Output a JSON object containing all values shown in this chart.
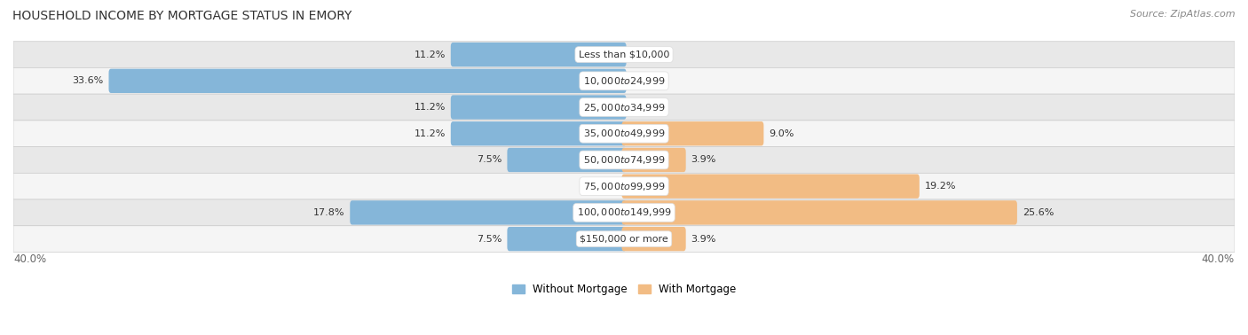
{
  "title": "HOUSEHOLD INCOME BY MORTGAGE STATUS IN EMORY",
  "source": "Source: ZipAtlas.com",
  "categories": [
    "Less than $10,000",
    "$10,000 to $24,999",
    "$25,000 to $34,999",
    "$35,000 to $49,999",
    "$50,000 to $74,999",
    "$75,000 to $99,999",
    "$100,000 to $149,999",
    "$150,000 or more"
  ],
  "without_mortgage": [
    11.2,
    33.6,
    11.2,
    11.2,
    7.5,
    0.0,
    17.8,
    7.5
  ],
  "with_mortgage": [
    0.0,
    0.0,
    0.0,
    9.0,
    3.9,
    19.2,
    25.6,
    3.9
  ],
  "color_without": "#85b6d9",
  "color_with": "#f2bc84",
  "background_row_odd": "#e8e8e8",
  "background_row_even": "#f5f5f5",
  "xlim": 40.0,
  "legend_label_without": "Without Mortgage",
  "legend_label_with": "With Mortgage",
  "title_fontsize": 10,
  "source_fontsize": 8,
  "label_fontsize": 8,
  "category_fontsize": 8,
  "bar_height": 0.62,
  "fig_width": 14.06,
  "fig_height": 3.78
}
